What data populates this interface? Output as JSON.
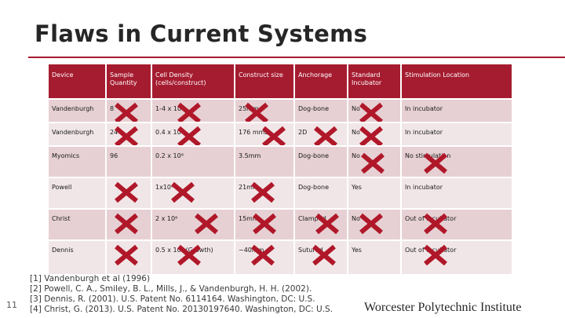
{
  "title": "Flaws in Current Systems",
  "colors": {
    "accent": "#a51c30",
    "row_odd": "#e6d0d3",
    "row_even": "#f1e6e7",
    "cross": "#b0182a"
  },
  "table": {
    "headers": [
      "Device",
      "Sample Quantity",
      "Cell Density (cells/construct)",
      "Construct size",
      "Anchorage",
      "Standard Incubator",
      "Stimulation Location"
    ],
    "rows": [
      [
        "Vandenburgh",
        "8",
        "1-4 x 10⁶",
        "25mm",
        "Dog-bone",
        "No",
        "In incubator"
      ],
      [
        "Vandenburgh",
        "24",
        "0.4 x 10⁶",
        "176 mm2",
        "2D",
        "No",
        "In incubator"
      ],
      [
        "Myomics",
        "96",
        "0.2 x 10⁶",
        "3.5mm",
        "Dog-bone",
        "No",
        "No stimulation"
      ],
      [
        "Powell",
        "",
        "1x10⁶",
        "21mm",
        "Dog-bone",
        "Yes",
        "In incubator"
      ],
      [
        "Christ",
        "",
        "2 x 10⁶",
        "15mm",
        "Clamped",
        "No",
        "Out of incubator"
      ],
      [
        "Dennis",
        "",
        "0.5 x 10⁶ (Growth)",
        "~40mm",
        "Sutured",
        "Yes",
        "Out of incubator"
      ]
    ]
  },
  "references": [
    "[1] Vandenburgh et al (1996)",
    "[2] Powell, C. A., Smiley, B. L., Mills, J., & Vandenburgh, H. H. (2002).",
    "[3] Dennis, R. (2001). U.S. Patent No. 6114164. Washington, DC: U.S.",
    "[4] Christ, G. (2013). U.S. Patent No. 20130197640. Washington, DC: U.S."
  ],
  "slide_number": "11",
  "footer_brand": "Worcester Polytechnic Institute"
}
